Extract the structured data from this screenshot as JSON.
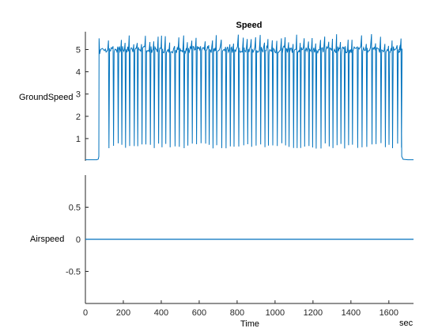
{
  "chart_data": [
    {
      "type": "line",
      "title": "Speed",
      "ylabel": "GroundSpeed",
      "xlim": [
        0,
        1730
      ],
      "ylim": [
        0,
        5.8
      ],
      "yticks": [
        1,
        2,
        3,
        4,
        5
      ],
      "color": "#0072BD",
      "series": [
        {
          "x": [
            0,
            60,
            70,
            72,
            75,
            80,
            95,
            110,
            1655,
            1662,
            1670,
            1700,
            1730
          ],
          "y": [
            0.05,
            0.05,
            0.1,
            5.5,
            4.8,
            5.0,
            5.0,
            5.0,
            5.0,
            5.2,
            0.2,
            0.05,
            0.05
          ],
          "pattern": "periodic drops from ~5.0 to ~0.6 roughly every 20 s between t=100 and t=1650, peaks up to ~5.7"
        }
      ]
    },
    {
      "type": "line",
      "ylabel": "Airspeed",
      "xlabel": "Time",
      "xunit": "sec",
      "xlim": [
        0,
        1730
      ],
      "xticks": [
        0,
        200,
        400,
        600,
        800,
        1000,
        1200,
        1400,
        1600
      ],
      "ylim": [
        -1,
        1
      ],
      "yticks": [
        -0.5,
        0,
        0.5
      ],
      "color": "#0072BD",
      "series": [
        {
          "x": [
            0,
            1730
          ],
          "y": [
            0,
            0
          ]
        }
      ]
    }
  ]
}
